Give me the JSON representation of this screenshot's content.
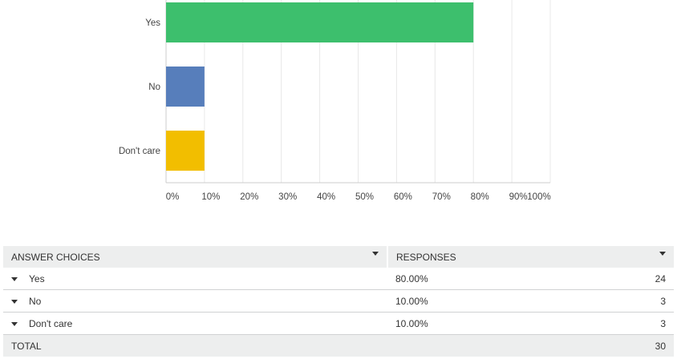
{
  "chart_data": {
    "type": "bar",
    "orientation": "horizontal",
    "categories": [
      "Yes",
      "No",
      "Don't care"
    ],
    "values": [
      80,
      10,
      10
    ],
    "colors": [
      "#3dbf6d",
      "#577ebb",
      "#f2be00"
    ],
    "xlim": [
      0,
      100
    ],
    "xticks": [
      "0%",
      "10%",
      "20%",
      "30%",
      "40%",
      "50%",
      "60%",
      "70%",
      "80%",
      "90%",
      "100%"
    ],
    "grid": true
  },
  "table": {
    "headers": {
      "choices": "ANSWER CHOICES",
      "responses": "RESPONSES"
    },
    "rows": [
      {
        "choice": "Yes",
        "percent": "80.00%",
        "count": "24"
      },
      {
        "choice": "No",
        "percent": "10.00%",
        "count": "3"
      },
      {
        "choice": "Don't care",
        "percent": "10.00%",
        "count": "3"
      }
    ],
    "total": {
      "label": "TOTAL",
      "count": "30"
    }
  }
}
